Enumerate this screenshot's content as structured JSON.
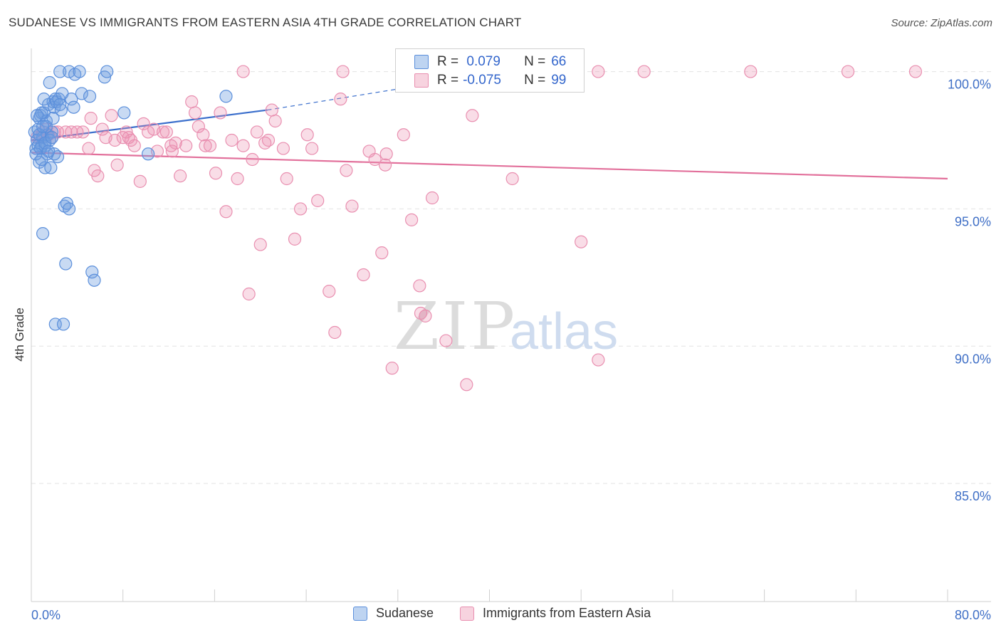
{
  "title": "SUDANESE VS IMMIGRANTS FROM EASTERN ASIA 4TH GRADE CORRELATION CHART",
  "source": "Source: ZipAtlas.com",
  "watermark": {
    "zip": "ZIP",
    "atlas": "atlas"
  },
  "legend_box": {
    "rows": [
      {
        "r_label": "R =",
        "r_value": " 0.079",
        "n_label": "N =",
        "n_value": "66",
        "color": "#6f9fe0"
      },
      {
        "r_label": "R =",
        "r_value": "-0.075",
        "n_label": "N =",
        "n_value": "99",
        "color": "#ec90b0"
      }
    ]
  },
  "chart_data": {
    "type": "scatter",
    "title": "SUDANESE VS IMMIGRANTS FROM EASTERN ASIA 4TH GRADE CORRELATION CHART",
    "xlabel": "",
    "ylabel": "4th Grade",
    "xlim": [
      0,
      80
    ],
    "ylim": [
      80.7,
      101.0
    ],
    "x_tick_labels": [
      "0.0%",
      "80.0%"
    ],
    "y_ticks": [
      85,
      90,
      95,
      100
    ],
    "y_tick_labels": [
      "85.0%",
      "90.0%",
      "95.0%",
      "100.0%"
    ],
    "grid": true,
    "legend_position": "bottom",
    "series": [
      {
        "name": "Sudanese",
        "color": "#6f9fe0",
        "trend": {
          "x0": 0,
          "y0": 97.5,
          "x1": 20.6,
          "y1": 98.6,
          "dash_x1": 34.0,
          "dash_y1": 99.5
        },
        "points": [
          [
            0.3,
            97.8
          ],
          [
            0.4,
            97.2
          ],
          [
            0.5,
            97.5
          ],
          [
            0.6,
            97.9
          ],
          [
            0.7,
            96.7
          ],
          [
            0.7,
            98.3
          ],
          [
            0.8,
            98.4
          ],
          [
            0.9,
            97.3
          ],
          [
            1.0,
            97.6
          ],
          [
            1.1,
            98.5
          ],
          [
            1.2,
            97.3
          ],
          [
            1.2,
            96.5
          ],
          [
            1.3,
            98.2
          ],
          [
            1.4,
            97.7
          ],
          [
            1.5,
            98.8
          ],
          [
            1.6,
            99.6
          ],
          [
            1.7,
            96.5
          ],
          [
            1.8,
            97.8
          ],
          [
            1.9,
            98.9
          ],
          [
            2.0,
            98.7
          ],
          [
            2.1,
            99.0
          ],
          [
            2.2,
            98.9
          ],
          [
            2.3,
            96.9
          ],
          [
            2.4,
            99.0
          ],
          [
            2.5,
            100.0
          ],
          [
            2.6,
            98.6
          ],
          [
            2.7,
            99.2
          ],
          [
            2.9,
            95.1
          ],
          [
            3.0,
            93.0
          ],
          [
            3.1,
            95.2
          ],
          [
            3.3,
            100.0
          ],
          [
            3.3,
            95.0
          ],
          [
            3.5,
            99.0
          ],
          [
            3.7,
            98.7
          ],
          [
            3.8,
            99.9
          ],
          [
            4.2,
            100.0
          ],
          [
            4.4,
            99.2
          ],
          [
            5.1,
            99.1
          ],
          [
            5.3,
            92.7
          ],
          [
            5.5,
            92.4
          ],
          [
            6.4,
            99.8
          ],
          [
            6.6,
            100.0
          ],
          [
            8.1,
            98.5
          ],
          [
            10.2,
            97.0
          ],
          [
            17.0,
            99.1
          ],
          [
            2.1,
            90.8
          ],
          [
            2.8,
            90.8
          ],
          [
            1.0,
            94.1
          ],
          [
            0.6,
            97.3
          ],
          [
            0.9,
            98.5
          ],
          [
            1.4,
            97.0
          ],
          [
            0.5,
            98.4
          ],
          [
            1.1,
            99.0
          ],
          [
            2.0,
            97.0
          ],
          [
            1.6,
            97.5
          ],
          [
            0.8,
            97.2
          ],
          [
            1.3,
            98.0
          ],
          [
            2.5,
            98.8
          ],
          [
            0.4,
            97.0
          ],
          [
            1.9,
            98.3
          ],
          [
            0.7,
            97.7
          ],
          [
            1.2,
            97.4
          ],
          [
            1.5,
            97.1
          ],
          [
            0.9,
            96.8
          ],
          [
            1.0,
            98.0
          ],
          [
            1.8,
            97.6
          ]
        ]
      },
      {
        "name": "Immigrants from Eastern Asia",
        "color": "#ec90b0",
        "trend": {
          "x0": 0,
          "y0": 97.05,
          "x1": 80,
          "y1": 96.1
        },
        "points": [
          [
            0.5,
            97.6
          ],
          [
            0.8,
            97.6
          ],
          [
            1.0,
            97.8
          ],
          [
            1.3,
            97.9
          ],
          [
            1.5,
            97.7
          ],
          [
            1.8,
            97.6
          ],
          [
            2.0,
            97.8
          ],
          [
            2.3,
            97.8
          ],
          [
            3.0,
            97.8
          ],
          [
            3.5,
            97.8
          ],
          [
            4.0,
            97.8
          ],
          [
            4.5,
            97.8
          ],
          [
            5.0,
            97.2
          ],
          [
            5.2,
            98.3
          ],
          [
            5.5,
            96.4
          ],
          [
            5.8,
            96.2
          ],
          [
            6.2,
            97.9
          ],
          [
            6.5,
            97.6
          ],
          [
            7.0,
            98.4
          ],
          [
            7.3,
            97.5
          ],
          [
            7.5,
            96.6
          ],
          [
            8.0,
            97.6
          ],
          [
            8.3,
            97.8
          ],
          [
            8.7,
            97.5
          ],
          [
            9.0,
            97.3
          ],
          [
            9.5,
            96.0
          ],
          [
            9.8,
            98.1
          ],
          [
            10.2,
            97.8
          ],
          [
            10.7,
            97.9
          ],
          [
            11.0,
            97.1
          ],
          [
            11.5,
            97.8
          ],
          [
            11.8,
            97.8
          ],
          [
            12.2,
            97.3
          ],
          [
            12.6,
            97.4
          ],
          [
            13.0,
            96.2
          ],
          [
            13.5,
            97.3
          ],
          [
            14.0,
            98.9
          ],
          [
            14.3,
            98.5
          ],
          [
            14.6,
            98.0
          ],
          [
            15.0,
            97.7
          ],
          [
            15.2,
            97.3
          ],
          [
            15.6,
            97.3
          ],
          [
            16.1,
            96.3
          ],
          [
            16.5,
            98.5
          ],
          [
            17.0,
            94.9
          ],
          [
            17.5,
            97.5
          ],
          [
            18.0,
            96.1
          ],
          [
            18.5,
            97.3
          ],
          [
            19.0,
            91.9
          ],
          [
            19.3,
            96.8
          ],
          [
            20.0,
            93.7
          ],
          [
            20.4,
            97.4
          ],
          [
            20.7,
            97.5
          ],
          [
            21.0,
            98.6
          ],
          [
            21.3,
            98.2
          ],
          [
            22.0,
            97.2
          ],
          [
            22.3,
            96.1
          ],
          [
            23.0,
            93.9
          ],
          [
            23.5,
            95.0
          ],
          [
            24.5,
            97.2
          ],
          [
            25.0,
            95.3
          ],
          [
            26.0,
            92.0
          ],
          [
            26.5,
            90.5
          ],
          [
            27.0,
            99.0
          ],
          [
            27.5,
            96.4
          ],
          [
            28.0,
            95.1
          ],
          [
            29.0,
            92.6
          ],
          [
            29.5,
            97.1
          ],
          [
            30.0,
            96.8
          ],
          [
            30.6,
            93.4
          ],
          [
            30.9,
            96.6
          ],
          [
            31.0,
            97.0
          ],
          [
            31.5,
            89.2
          ],
          [
            32.5,
            97.7
          ],
          [
            33.2,
            94.6
          ],
          [
            33.9,
            92.2
          ],
          [
            34.0,
            91.2
          ],
          [
            34.4,
            91.1
          ],
          [
            35.0,
            95.4
          ],
          [
            36.2,
            90.2
          ],
          [
            38.0,
            88.6
          ],
          [
            38.5,
            98.4
          ],
          [
            42.0,
            96.1
          ],
          [
            48.0,
            93.8
          ],
          [
            49.5,
            89.5
          ],
          [
            18.5,
            100.0
          ],
          [
            27.2,
            100.0
          ],
          [
            35.0,
            100.0
          ],
          [
            37.5,
            100.0
          ],
          [
            42.0,
            100.0
          ],
          [
            49.5,
            100.0
          ],
          [
            53.5,
            100.0
          ],
          [
            62.8,
            100.0
          ],
          [
            71.3,
            100.0
          ],
          [
            77.2,
            100.0
          ],
          [
            8.5,
            97.6
          ],
          [
            12.3,
            97.1
          ],
          [
            19.7,
            97.8
          ],
          [
            24.1,
            97.7
          ]
        ]
      }
    ]
  }
}
